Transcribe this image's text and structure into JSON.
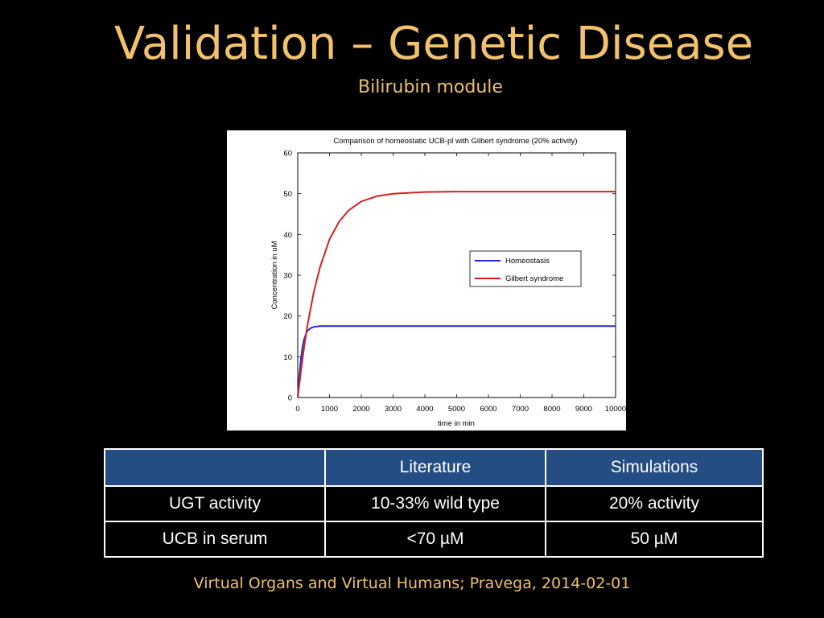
{
  "slide": {
    "title": "Validation – Genetic Disease",
    "subtitle": "Bilirubin module",
    "footer": "Virtual Organs and Virtual Humans; Pravega, 2014-02-01"
  },
  "table": {
    "header": [
      "",
      "Literature",
      "Simulations"
    ],
    "rows": [
      [
        "UGT activity",
        "10-33% wild type",
        "20% activity"
      ],
      [
        "UCB in serum",
        "<70 µM",
        "50 µM"
      ]
    ],
    "header_color": "#244d84"
  },
  "chart_data": {
    "type": "line",
    "title": "Comparison of homeostatic UCB-pl with Gilbert syndrome  (20% activity)",
    "xlabel": "time in min",
    "ylabel": "Concentration in uM",
    "xlim": [
      0,
      10000
    ],
    "ylim": [
      0,
      60
    ],
    "xticks": [
      0,
      1000,
      2000,
      3000,
      4000,
      5000,
      6000,
      7000,
      8000,
      9000,
      10000
    ],
    "yticks": [
      0,
      10,
      20,
      30,
      40,
      50,
      60
    ],
    "grid": false,
    "legend_position": "right",
    "series": [
      {
        "name": "Homeostasis",
        "color": "#1f2fd0",
        "x": [
          0,
          50,
          100,
          150,
          200,
          300,
          400,
          500,
          700,
          1000,
          2000,
          4000,
          6000,
          8000,
          10000
        ],
        "y": [
          0,
          5.5,
          9.5,
          12.4,
          14.3,
          16.3,
          17.0,
          17.3,
          17.5,
          17.5,
          17.5,
          17.5,
          17.5,
          17.5,
          17.5
        ]
      },
      {
        "name": "Gilbert syndrome",
        "color": "#d42020",
        "x": [
          0,
          100,
          200,
          300,
          500,
          700,
          1000,
          1300,
          1600,
          2000,
          2500,
          3000,
          4000,
          5000,
          6000,
          8000,
          10000
        ],
        "y": [
          0,
          6.5,
          12.3,
          17.4,
          25.7,
          32.0,
          38.8,
          43.1,
          45.9,
          48.1,
          49.4,
          50.0,
          50.4,
          50.5,
          50.5,
          50.5,
          50.5
        ]
      }
    ]
  }
}
